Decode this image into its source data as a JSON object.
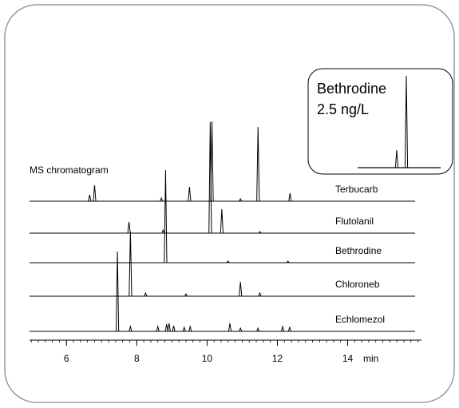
{
  "chart_data": {
    "type": "chromatogram",
    "annotation": "MS chromatogram",
    "x_unit": "min",
    "xlim": [
      4.95,
      16.1
    ],
    "xticks": [
      6,
      8,
      10,
      12,
      14
    ],
    "xminor": 0.2,
    "color": "#000000",
    "series": [
      {
        "name": "Terbucarb",
        "x": [
          6.66,
          6.8,
          8.7,
          9.5,
          10.14,
          10.95,
          11.45,
          12.36
        ],
        "values": [
          8,
          20,
          4,
          18,
          100,
          3,
          93,
          10
        ]
      },
      {
        "name": "Flutolanil",
        "x": [
          7.78,
          8.75,
          10.09,
          10.42,
          11.5
        ],
        "values": [
          14,
          4,
          139,
          30,
          2
        ]
      },
      {
        "name": "Bethrodine",
        "x": [
          8.82,
          10.6,
          12.3
        ],
        "values": [
          116,
          2,
          2
        ]
      },
      {
        "name": "Chloroneb",
        "x": [
          7.82,
          8.25,
          9.4,
          10.95,
          11.5
        ],
        "values": [
          81,
          4,
          3,
          18,
          4
        ]
      },
      {
        "name": "Echlomezol",
        "x": [
          7.45,
          7.82,
          8.6,
          8.85,
          8.92,
          9.05,
          9.35,
          9.52,
          10.65,
          10.95,
          11.45,
          12.15,
          12.35
        ],
        "values": [
          100,
          6,
          6,
          9,
          10,
          7,
          5,
          6,
          10,
          4,
          4,
          6,
          5
        ]
      }
    ],
    "inset": {
      "title": "Bethrodine",
      "subtitle": "2.5 ng/L",
      "xlim": [
        4.95,
        16.1
      ],
      "x": [
        10.2,
        11.49
      ],
      "values": [
        22,
        115
      ]
    }
  }
}
